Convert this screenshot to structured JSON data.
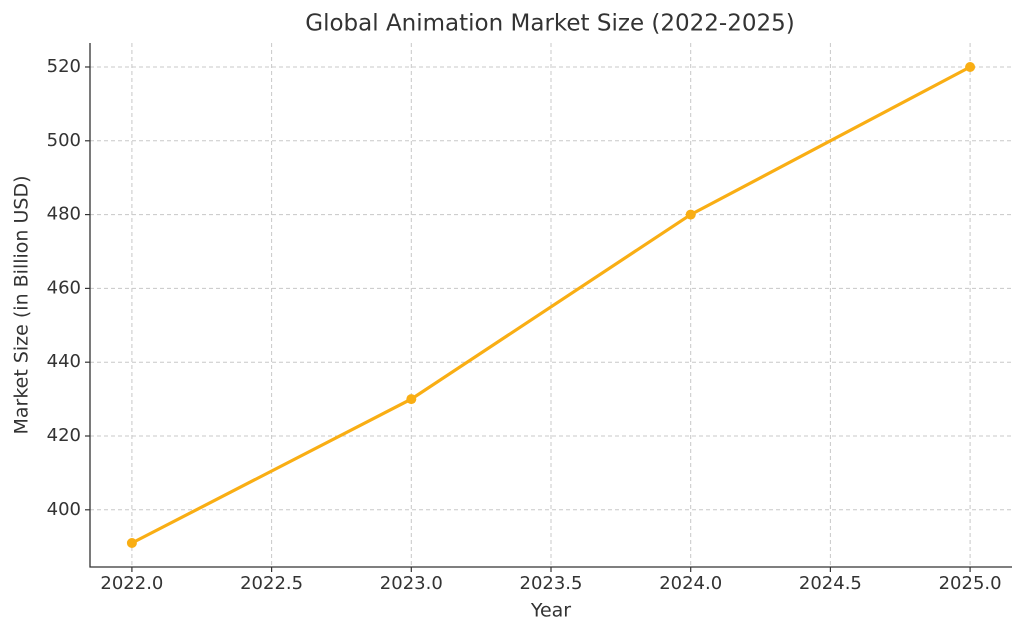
{
  "chart_data": {
    "type": "line",
    "title": "Global Animation Market Size (2022-2025)",
    "x_label": "Year",
    "y_label": "Market Size (in Billion USD)",
    "x": [
      2022,
      2023,
      2024,
      2025
    ],
    "series": [
      {
        "color": "#f9ae14",
        "values": [
          391,
          430,
          480,
          520
        ]
      }
    ],
    "xlim": [
      2021.85,
      2025.15
    ],
    "xticks": [
      {
        "value": 2022,
        "label": "2022.0"
      },
      2022.5,
      {
        "value": 2023,
        "label": "2023.0"
      },
      2023.5,
      {
        "value": 2024,
        "label": "2024.0"
      },
      2024.5,
      {
        "value": 2025,
        "label": "2025.0"
      }
    ],
    "ylim": [
      384.5,
      526.5
    ],
    "yticks": [
      400,
      420,
      440,
      460,
      480,
      500,
      520
    ],
    "grid": true,
    "markers": true
  }
}
